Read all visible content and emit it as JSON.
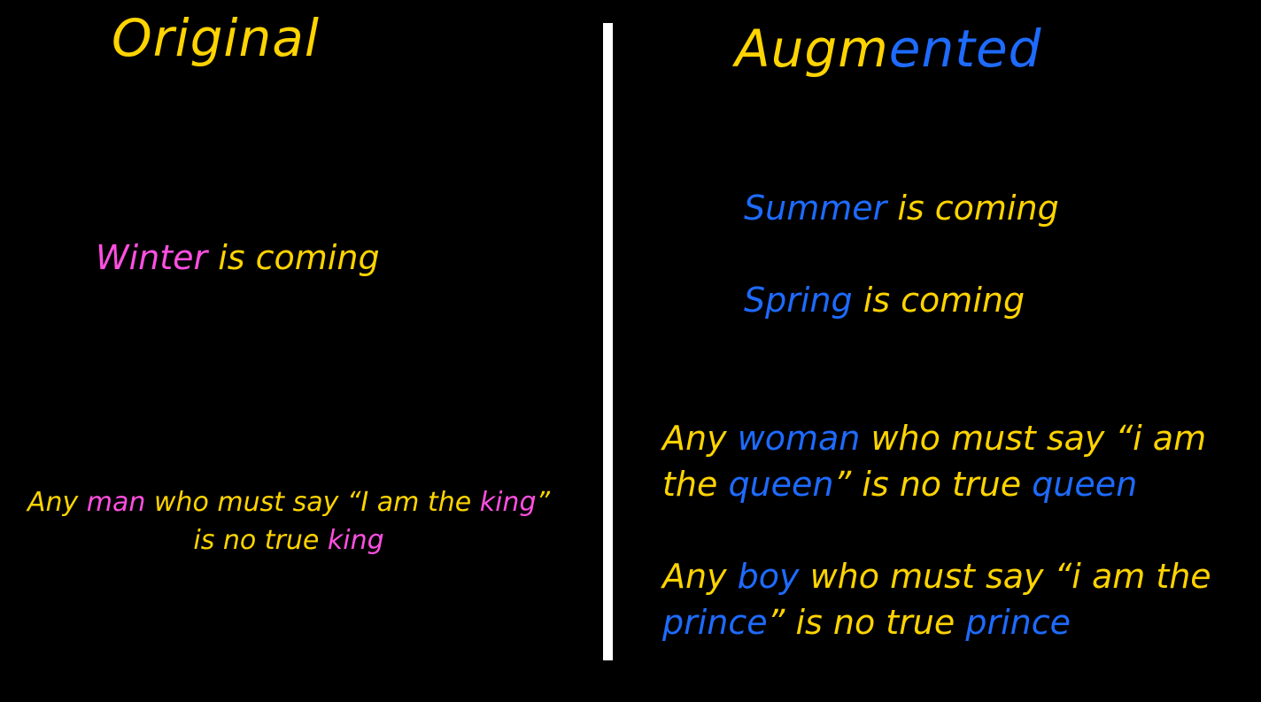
{
  "colors": {
    "yellow": "#FFD400",
    "magenta": "#FF4FE0",
    "blue": "#1E6BFF",
    "background": "#000000",
    "divider": "#FFFFFF"
  },
  "left": {
    "heading": "Original",
    "sentence1": {
      "word": "Winter",
      "rest": " is coming"
    },
    "sentence2": {
      "line1": {
        "p1": "Any ",
        "w1": "man",
        "p2": " who must say “I am the ",
        "w2": "king",
        "p3": "”"
      },
      "line2": {
        "p1": "is no true ",
        "w1": "king"
      }
    }
  },
  "right": {
    "heading": {
      "part1": "Augm",
      "part2": "ented"
    },
    "sentence1": {
      "word": "Summer",
      "rest": " is coming"
    },
    "sentence2": {
      "word": "Spring",
      "rest": " is coming"
    },
    "sentence3": {
      "line1": {
        "p1": "Any ",
        "w1": "woman",
        "p2": " who must say “i am"
      },
      "line2": {
        "w1": "the ",
        "w2": "queen",
        "p1": "” is no true ",
        "w3": "queen"
      }
    },
    "sentence4": {
      "line1": {
        "p1": "Any ",
        "w1": "boy",
        "p2": " who must say “i am the"
      },
      "line2": {
        "w1": "prince",
        "p1": "” is no true ",
        "w2": "prince"
      }
    }
  }
}
